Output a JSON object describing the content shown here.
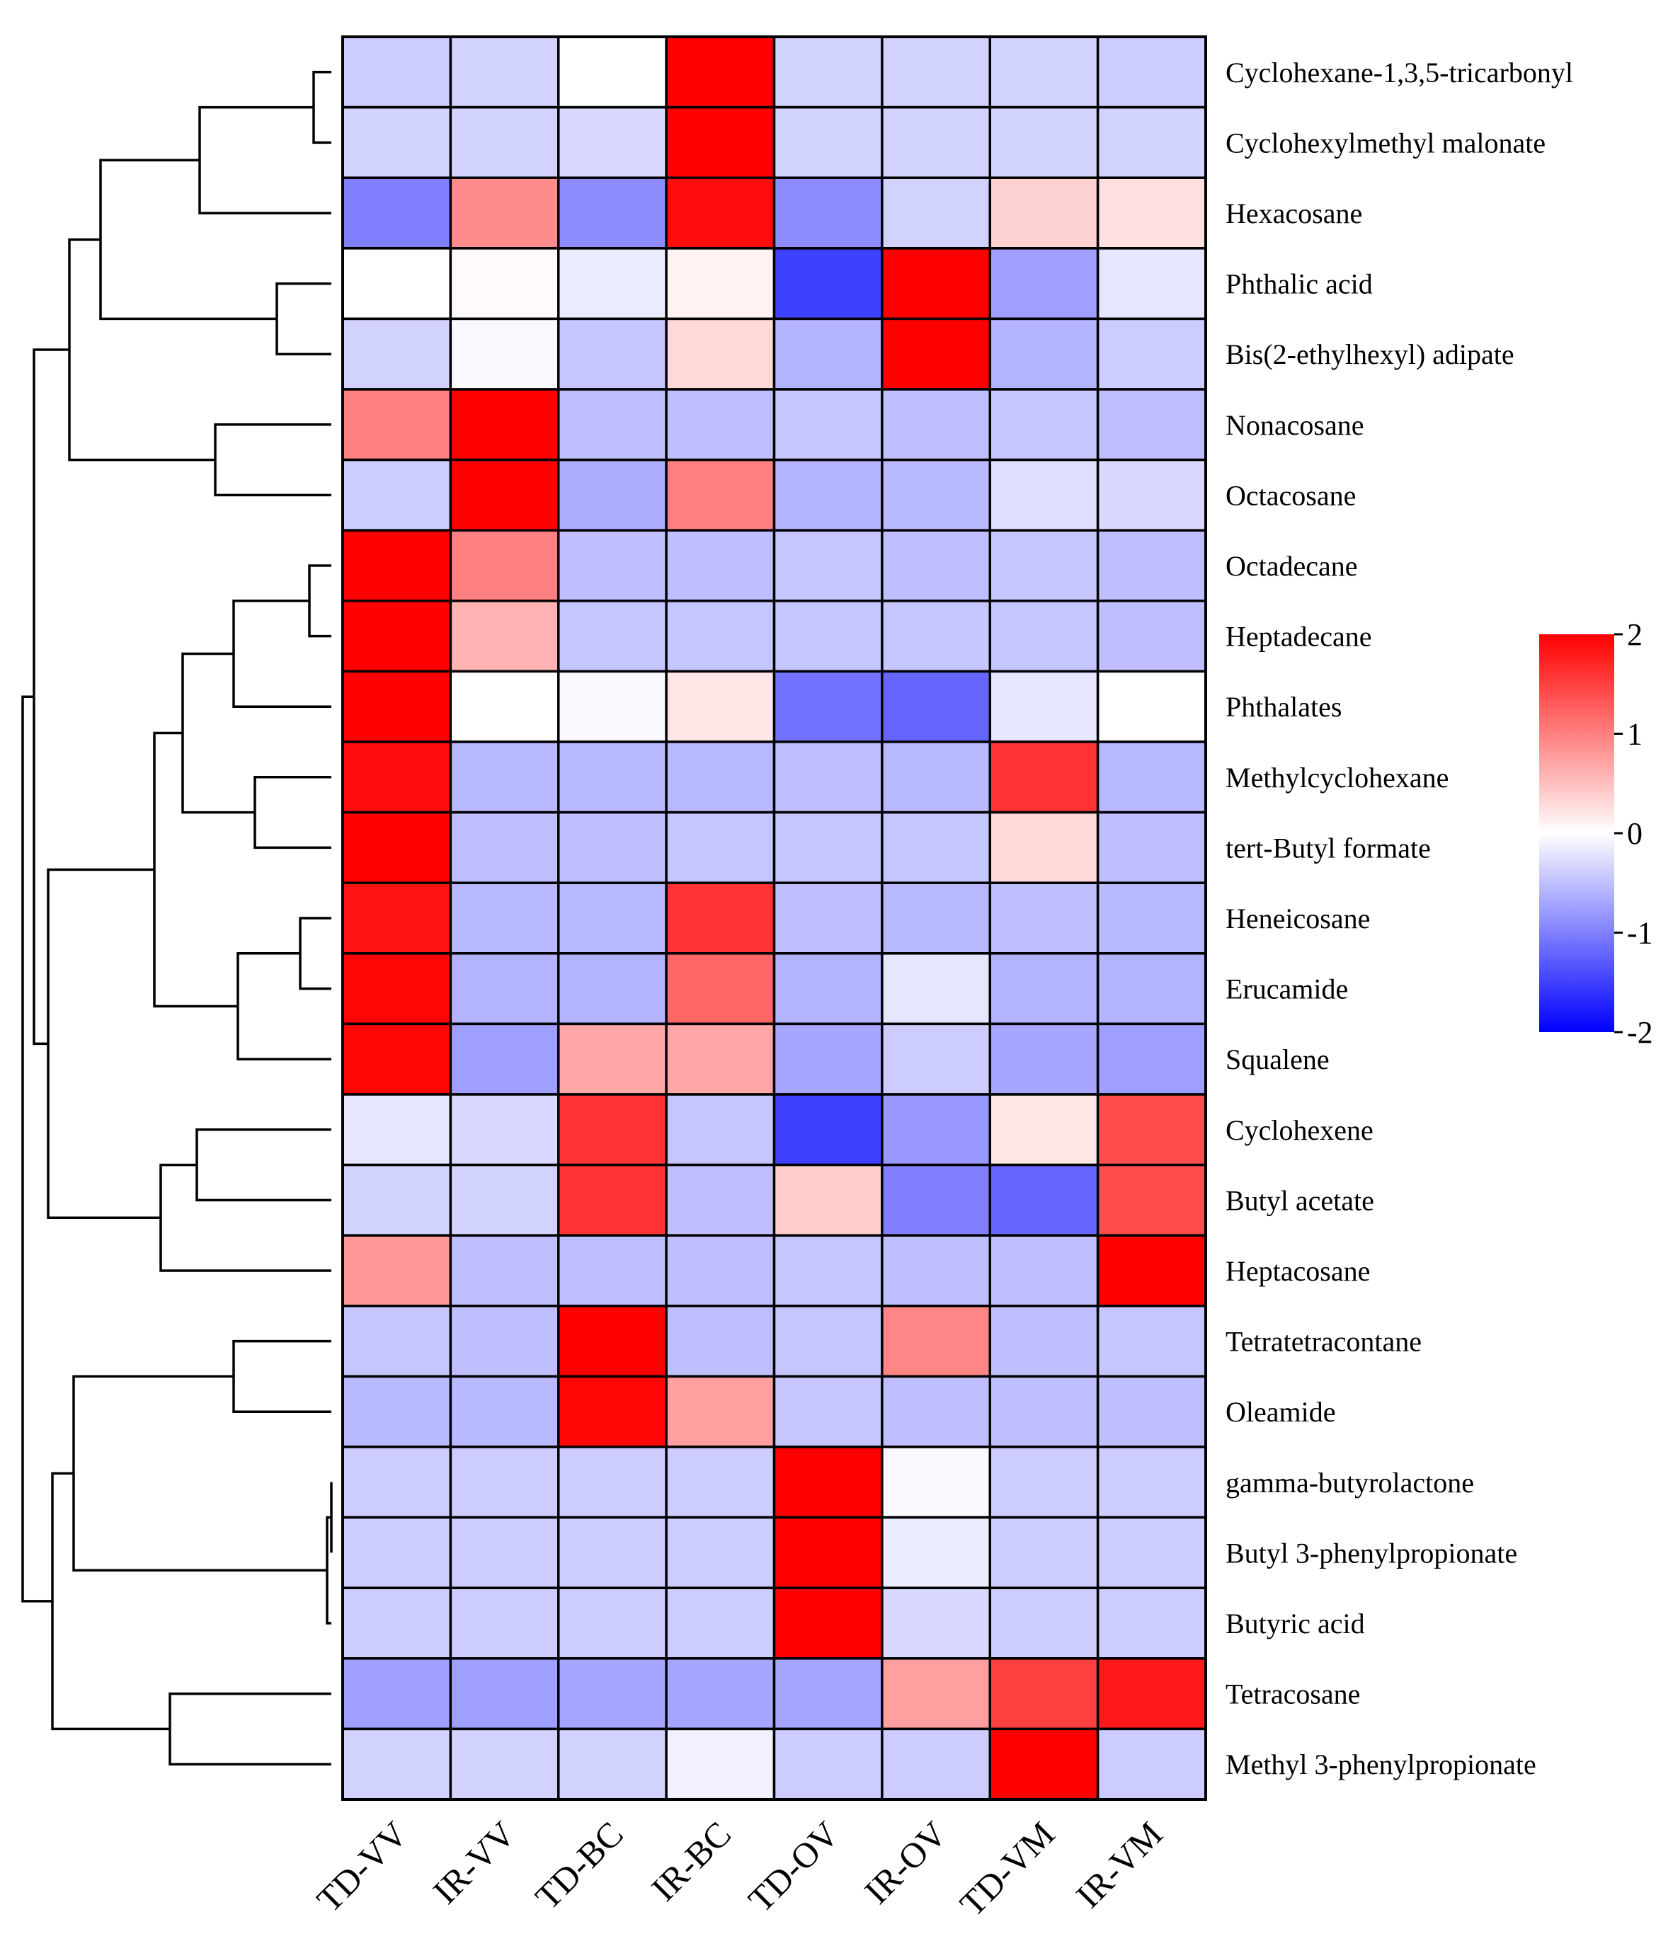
{
  "chart_data": {
    "type": "heatmap",
    "title": "",
    "columns": [
      "TD-VV",
      "IR-VV",
      "TD-BC",
      "IR-BC",
      "TD-OV",
      "IR-OV",
      "TD-VM",
      "IR-VM"
    ],
    "rows": [
      "Cyclohexane-1,3,5-tricarbonyl",
      "Cyclohexylmethyl malonate",
      "Hexacosane",
      "Phthalic acid",
      "Bis(2-ethylhexyl) adipate",
      "Nonacosane",
      "Octacosane",
      "Octadecane",
      "Heptadecane",
      "Phthalates",
      "Methylcyclohexane",
      "tert-Butyl formate",
      "Heneicosane",
      "Erucamide",
      "Squalene",
      "Cyclohexene",
      "Butyl acetate",
      "Heptacosane",
      "Tetratetracontane",
      "Oleamide",
      "gamma-butyrolactone",
      "Butyl 3-phenylpropionate",
      "Butyric acid",
      "Tetracosane",
      "Methyl 3-phenylpropionate"
    ],
    "values": [
      [
        -0.4,
        -0.35,
        0.0,
        2.0,
        -0.35,
        -0.35,
        -0.35,
        -0.4
      ],
      [
        -0.35,
        -0.35,
        -0.3,
        2.0,
        -0.35,
        -0.35,
        -0.35,
        -0.35
      ],
      [
        -1.0,
        0.9,
        -0.9,
        1.9,
        -0.9,
        -0.35,
        0.35,
        0.25
      ],
      [
        0.0,
        0.05,
        -0.15,
        0.1,
        -1.5,
        2.0,
        -0.75,
        -0.2
      ],
      [
        -0.35,
        -0.05,
        -0.45,
        0.3,
        -0.6,
        2.0,
        -0.6,
        -0.4
      ],
      [
        1.0,
        2.0,
        -0.5,
        -0.5,
        -0.45,
        -0.5,
        -0.45,
        -0.5
      ],
      [
        -0.4,
        2.0,
        -0.65,
        1.0,
        -0.6,
        -0.55,
        -0.25,
        -0.3
      ],
      [
        2.0,
        1.0,
        -0.5,
        -0.5,
        -0.45,
        -0.5,
        -0.45,
        -0.5
      ],
      [
        2.0,
        0.6,
        -0.45,
        -0.45,
        -0.45,
        -0.45,
        -0.45,
        -0.5
      ],
      [
        2.0,
        0.0,
        -0.05,
        0.2,
        -1.1,
        -1.2,
        -0.2,
        0.0
      ],
      [
        1.9,
        -0.55,
        -0.55,
        -0.55,
        -0.5,
        -0.55,
        1.6,
        -0.55
      ],
      [
        2.0,
        -0.5,
        -0.5,
        -0.45,
        -0.45,
        -0.45,
        0.3,
        -0.5
      ],
      [
        1.85,
        -0.55,
        -0.55,
        1.6,
        -0.5,
        -0.55,
        -0.5,
        -0.55
      ],
      [
        1.95,
        -0.6,
        -0.6,
        1.2,
        -0.6,
        -0.2,
        -0.6,
        -0.6
      ],
      [
        1.95,
        -0.75,
        0.7,
        0.7,
        -0.7,
        -0.4,
        -0.7,
        -0.75
      ],
      [
        -0.2,
        -0.3,
        1.6,
        -0.45,
        -1.5,
        -0.8,
        0.2,
        1.4
      ],
      [
        -0.35,
        -0.35,
        1.6,
        -0.5,
        0.4,
        -1.0,
        -1.2,
        1.4
      ],
      [
        0.8,
        -0.5,
        -0.5,
        -0.5,
        -0.45,
        -0.5,
        -0.5,
        2.0
      ],
      [
        -0.45,
        -0.5,
        2.0,
        -0.5,
        -0.45,
        0.95,
        -0.5,
        -0.45
      ],
      [
        -0.55,
        -0.55,
        1.95,
        0.75,
        -0.45,
        -0.5,
        -0.5,
        -0.5
      ],
      [
        -0.4,
        -0.4,
        -0.4,
        -0.4,
        2.0,
        -0.05,
        -0.4,
        -0.4
      ],
      [
        -0.4,
        -0.4,
        -0.4,
        -0.4,
        2.0,
        -0.15,
        -0.4,
        -0.4
      ],
      [
        -0.4,
        -0.4,
        -0.4,
        -0.4,
        2.0,
        -0.3,
        -0.4,
        -0.4
      ],
      [
        -0.75,
        -0.75,
        -0.7,
        -0.7,
        -0.7,
        0.75,
        1.5,
        1.8
      ],
      [
        -0.35,
        -0.35,
        -0.35,
        -0.1,
        -0.4,
        -0.4,
        2.0,
        -0.4
      ]
    ],
    "colorbar": {
      "min": -2,
      "max": 2,
      "ticks": [
        "2",
        "1",
        "0",
        "-1",
        "-2"
      ],
      "colors": {
        "low": "#0000ff",
        "mid": "#ffffff",
        "high": "#ff0000"
      }
    },
    "dendrogram_side": "left",
    "xlabel": "",
    "ylabel": ""
  }
}
